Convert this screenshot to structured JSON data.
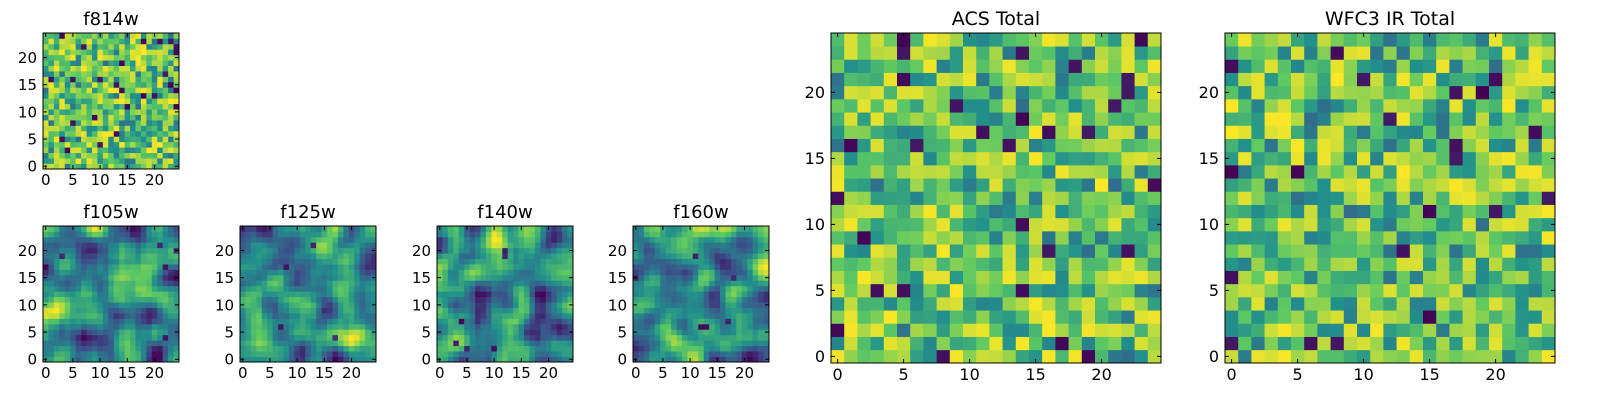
{
  "colormap": [
    "#440154",
    "#3b528b",
    "#21918c",
    "#5ec962",
    "#fde725"
  ],
  "chart_data": [
    {
      "type": "heatmap",
      "title": "f814w",
      "xlim": [
        -0.5,
        24.5
      ],
      "ylim": [
        -0.5,
        24.5
      ],
      "xticks": [
        0,
        5,
        10,
        15,
        20
      ],
      "yticks": [
        0,
        5,
        10,
        15,
        20
      ],
      "grid": false,
      "texture": "fine-noise",
      "values": []
    },
    {
      "type": "heatmap",
      "title": "f105w",
      "xlim": [
        -0.5,
        24.5
      ],
      "ylim": [
        -0.5,
        24.5
      ],
      "xticks": [
        0,
        5,
        10,
        15,
        20
      ],
      "yticks": [
        0,
        5,
        10,
        15,
        20
      ],
      "grid": false,
      "texture": "smooth",
      "values": []
    },
    {
      "type": "heatmap",
      "title": "f125w",
      "xlim": [
        -0.5,
        24.5
      ],
      "ylim": [
        -0.5,
        24.5
      ],
      "xticks": [
        0,
        5,
        10,
        15,
        20
      ],
      "yticks": [
        0,
        5,
        10,
        15,
        20
      ],
      "grid": false,
      "texture": "smooth",
      "values": []
    },
    {
      "type": "heatmap",
      "title": "f140w",
      "xlim": [
        -0.5,
        24.5
      ],
      "ylim": [
        -0.5,
        24.5
      ],
      "xticks": [
        0,
        5,
        10,
        15,
        20
      ],
      "yticks": [
        0,
        5,
        10,
        15,
        20
      ],
      "grid": false,
      "texture": "smooth",
      "values": []
    },
    {
      "type": "heatmap",
      "title": "f160w",
      "xlim": [
        -0.5,
        24.5
      ],
      "ylim": [
        -0.5,
        24.5
      ],
      "xticks": [
        0,
        5,
        10,
        15,
        20
      ],
      "yticks": [
        0,
        5,
        10,
        15,
        20
      ],
      "grid": false,
      "texture": "smooth",
      "values": []
    },
    {
      "type": "heatmap",
      "title": "ACS Total",
      "xlim": [
        -0.5,
        24.5
      ],
      "ylim": [
        -0.5,
        24.5
      ],
      "xticks": [
        0,
        5,
        10,
        15,
        20
      ],
      "yticks": [
        0,
        5,
        10,
        15,
        20
      ],
      "grid": false,
      "texture": "coarse-noise",
      "values": []
    },
    {
      "type": "heatmap",
      "title": "WFC3 IR Total",
      "xlim": [
        -0.5,
        24.5
      ],
      "ylim": [
        -0.5,
        24.5
      ],
      "xticks": [
        0,
        5,
        10,
        15,
        20
      ],
      "yticks": [
        0,
        5,
        10,
        15,
        20
      ],
      "grid": false,
      "texture": "coarse-noise",
      "values": []
    }
  ]
}
